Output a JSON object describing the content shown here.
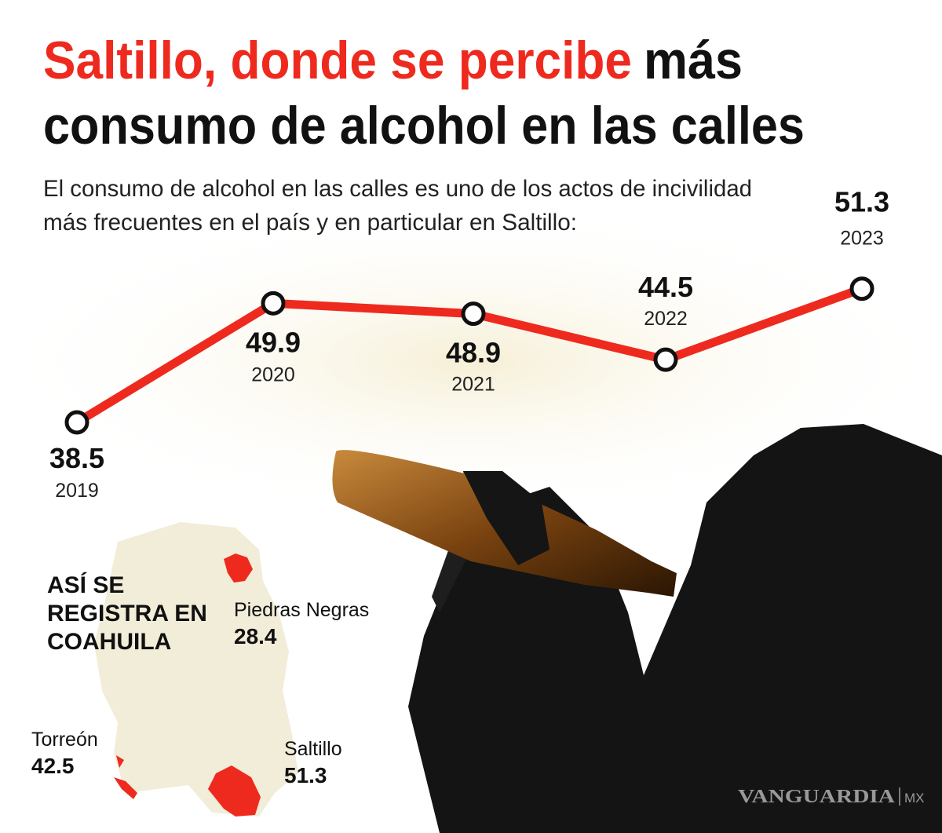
{
  "chart_data": {
    "type": "line",
    "title": [
      "Saltillo, donde se percibe",
      "más",
      "consumo de alcohol en las calles"
    ],
    "subtitle": [
      "El consumo de alcohol en las calles es uno de los actos de incivilidad",
      "más frecuentes en el país y en particular en Saltillo:"
    ],
    "categories": [
      "2019",
      "2020",
      "2021",
      "2022",
      "2023"
    ],
    "values": [
      38.5,
      49.9,
      48.9,
      44.5,
      51.3
    ],
    "color": "#ee2a1f"
  },
  "map": {
    "title": "ASÍ SE REGISTRA EN COAHUILA",
    "cities": [
      {
        "name": "Piedras Negras",
        "value": 28.4
      },
      {
        "name": "Torreón",
        "value": 42.5
      },
      {
        "name": "Saltillo",
        "value": 51.3
      }
    ]
  },
  "credit": {
    "name": "VANGUARDIA",
    "suffix": "MX"
  }
}
